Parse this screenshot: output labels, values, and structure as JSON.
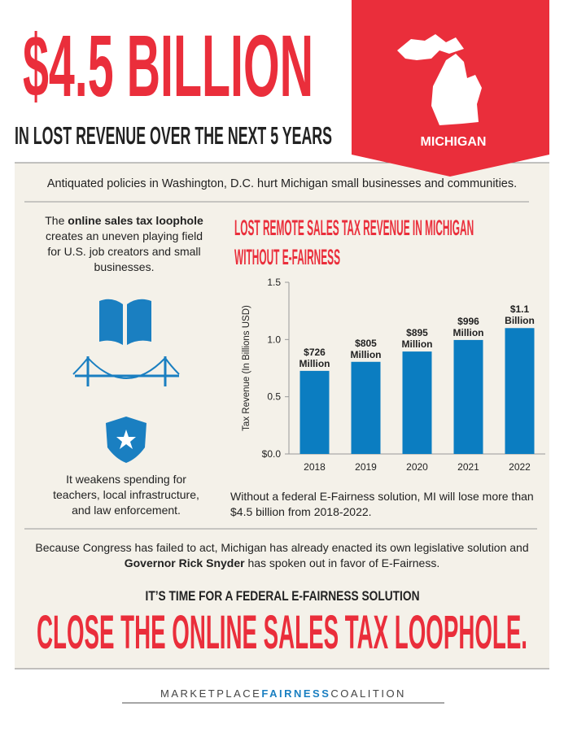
{
  "header": {
    "title": "$4.5 BILLION",
    "subtitle": "IN LOST REVENUE OVER THE NEXT 5 YEARS",
    "state": "MICHIGAN"
  },
  "intro": "Antiquated policies in Washington, D.C. hurt Michigan small businesses and communities.",
  "left": {
    "top": [
      "The ",
      "online sales tax loophole",
      " creates an uneven playing field for U.S. job creators and small businesses."
    ],
    "bottom": "It weakens spending for teachers, local infrastructure, and law enforcement."
  },
  "chart_data": {
    "type": "bar",
    "title": "LOST REMOTE SALES TAX REVENUE IN MICHIGAN WITHOUT E-FAIRNESS",
    "y_label": "Tax Revenue (In Billions USD)",
    "categories": [
      "2018",
      "2019",
      "2020",
      "2021",
      "2022"
    ],
    "values": [
      0.726,
      0.805,
      0.895,
      0.996,
      1.1
    ],
    "value_labels": [
      "$726 Million",
      "$805 Million",
      "$895 Million",
      "$996 Million",
      "$1.1 Billion"
    ],
    "color": "#0b7dc1",
    "ylim": [
      0,
      1.5
    ],
    "yticks": [
      {
        "value": 0,
        "label": "$0.0"
      },
      0.5,
      {
        "value": 1,
        "label": "1.0"
      },
      1.5
    ]
  },
  "chart_note": "Without a federal E-Fairness solution, MI will lose more than $4.5 billion from 2018-2022.",
  "closing": [
    "Because Congress has failed to act, Michigan has already enacted its own legislative solution and ",
    "Governor Rick Snyder",
    " has spoken out in favor of E-Fairness."
  ],
  "call": {
    "lead": "IT’S TIME FOR A FEDERAL E-FAIRNESS SOLUTION",
    "headline": "CLOSE THE ONLINE SALES TAX LOOPHOLE."
  },
  "footer": [
    "MARKETPLACE",
    "FAIRNESS",
    "COALITION"
  ]
}
